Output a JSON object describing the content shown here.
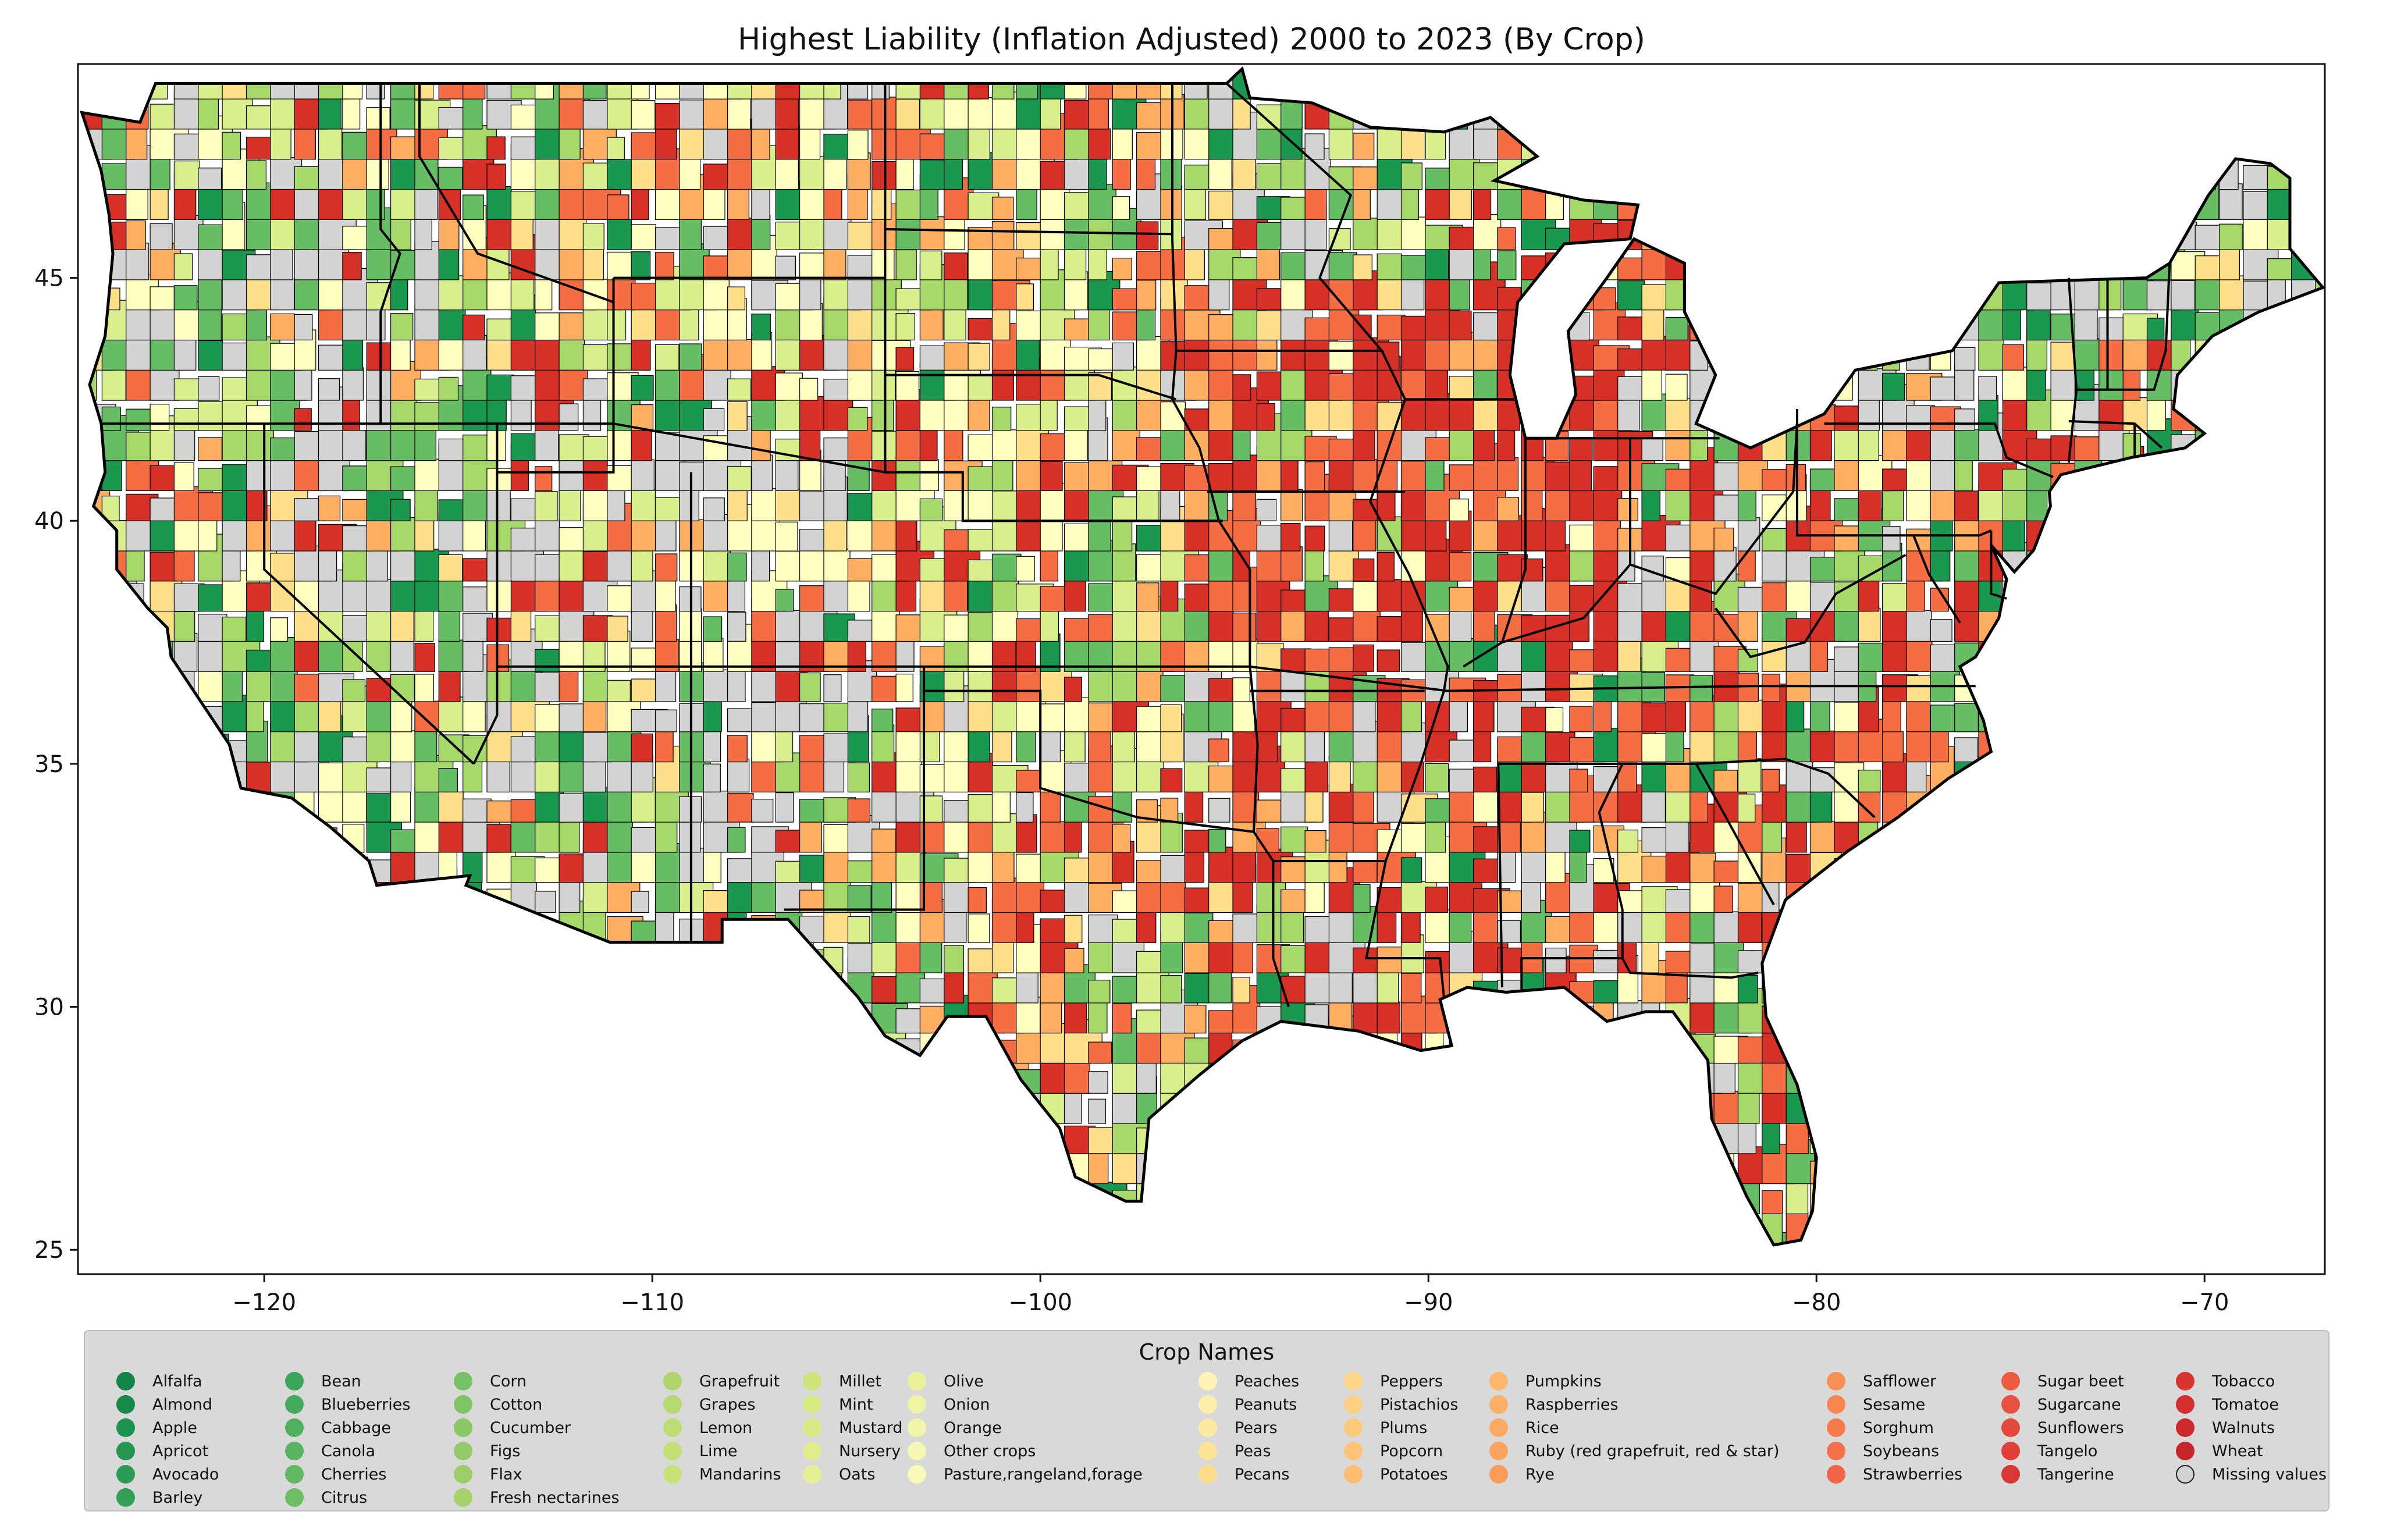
{
  "title": "Highest Liability  (Inflation Adjusted) 2000 to 2023 (By Crop)",
  "legend": {
    "title": "Crop Names",
    "columns": [
      [
        {
          "label": "Alfalfa",
          "color": "#138547"
        },
        {
          "label": "Almond",
          "color": "#178a4a"
        },
        {
          "label": "Apple",
          "color": "#1d914e"
        },
        {
          "label": "Apricot",
          "color": "#249652"
        },
        {
          "label": "Avocado",
          "color": "#2b9b55"
        },
        {
          "label": "Barley",
          "color": "#33a058"
        }
      ],
      [
        {
          "label": "Bean",
          "color": "#3aa55b"
        },
        {
          "label": "Blueberries",
          "color": "#44aa5d"
        },
        {
          "label": "Cabbage",
          "color": "#4fb05f"
        },
        {
          "label": "Canola",
          "color": "#58b461"
        },
        {
          "label": "Cherries",
          "color": "#62b963"
        },
        {
          "label": "Citrus",
          "color": "#6cbd64"
        }
      ],
      [
        {
          "label": "Corn",
          "color": "#76c065"
        },
        {
          "label": "Cotton",
          "color": "#80c465"
        },
        {
          "label": "Cucumber",
          "color": "#8ac766"
        },
        {
          "label": "Figs",
          "color": "#94ca67"
        },
        {
          "label": "Flax",
          "color": "#9ece69"
        },
        {
          "label": "Fresh nectarines",
          "color": "#a7d26b"
        }
      ],
      [
        {
          "label": "Grapefruit",
          "color": "#afd56d"
        },
        {
          "label": "Grapes",
          "color": "#b6d970"
        },
        {
          "label": "Lemon",
          "color": "#bddc72"
        },
        {
          "label": "Lime",
          "color": "#c3df75"
        },
        {
          "label": "Mandarins",
          "color": "#c9e278"
        }
      ],
      [
        {
          "label": "Millet",
          "color": "#cfe57c"
        },
        {
          "label": "Mint",
          "color": "#d5e881"
        },
        {
          "label": "Mustard",
          "color": "#daeb86"
        },
        {
          "label": "Nursery",
          "color": "#dfed8c"
        },
        {
          "label": "Oats",
          "color": "#e4f093"
        }
      ],
      [
        {
          "label": "Olive",
          "color": "#e9f29a"
        },
        {
          "label": "Onion",
          "color": "#edf4a2"
        },
        {
          "label": "Orange",
          "color": "#f1f6aa"
        },
        {
          "label": "Other crops",
          "color": "#f5f7b2"
        },
        {
          "label": "Pasture,rangeland,forage",
          "color": "#f8f8b9"
        }
      ],
      [
        {
          "label": "Peaches",
          "color": "#fef5b4"
        },
        {
          "label": "Peanuts",
          "color": "#feefaa"
        },
        {
          "label": "Pears",
          "color": "#fee9a0"
        },
        {
          "label": "Peas",
          "color": "#fee397"
        },
        {
          "label": "Pecans",
          "color": "#fedc8e"
        }
      ],
      [
        {
          "label": "Peppers",
          "color": "#fed687"
        },
        {
          "label": "Pistachios",
          "color": "#fdd082"
        },
        {
          "label": "Plums",
          "color": "#fdca7c"
        },
        {
          "label": "Popcorn",
          "color": "#fdc477"
        },
        {
          "label": "Potatoes",
          "color": "#fdbd72"
        }
      ],
      [
        {
          "label": "Pumpkins",
          "color": "#fdb76d"
        },
        {
          "label": "Raspberries",
          "color": "#fcb068"
        },
        {
          "label": "Rice",
          "color": "#fcaa63"
        },
        {
          "label": "Ruby (red grapefruit, red & star)",
          "color": "#fca35e"
        },
        {
          "label": "Rye",
          "color": "#fb9d59"
        }
      ],
      [
        {
          "label": "Safflower",
          "color": "#f99155"
        },
        {
          "label": "Sesame",
          "color": "#f78651"
        },
        {
          "label": "Sorghum",
          "color": "#f57b4d"
        },
        {
          "label": "Soybeans",
          "color": "#f37049"
        },
        {
          "label": "Strawberries",
          "color": "#f06545"
        }
      ],
      [
        {
          "label": "Sugar beet",
          "color": "#ec5b42"
        },
        {
          "label": "Sugarcane",
          "color": "#e8513e"
        },
        {
          "label": "Sunflowers",
          "color": "#e4483a"
        },
        {
          "label": "Tangelo",
          "color": "#df3f36"
        },
        {
          "label": "Tangerine",
          "color": "#d93733"
        }
      ],
      [
        {
          "label": "Tobacco",
          "color": "#d83531"
        },
        {
          "label": "Tomatoe",
          "color": "#d22f2e"
        },
        {
          "label": "Walnuts",
          "color": "#cc2a2b"
        },
        {
          "label": "Wheat",
          "color": "#c62428"
        },
        {
          "label": "Missing values",
          "color": "#d3d3d3"
        }
      ]
    ]
  },
  "axes": {
    "x_ticks": [
      -120,
      -110,
      -100,
      -90,
      -80,
      -70
    ],
    "y_ticks": [
      25,
      30,
      35,
      40,
      45
    ],
    "x_tick_labels": [
      "−120",
      "−110",
      "−100",
      "−90",
      "−80",
      "−70"
    ],
    "y_tick_labels": [
      "25",
      "30",
      "35",
      "40",
      "45"
    ],
    "xlim": [
      -124.8,
      -66.9
    ],
    "ylim": [
      24.5,
      49.4
    ]
  },
  "palette": [
    "#1a9850",
    "#66bd63",
    "#a6d96a",
    "#d9ef8b",
    "#ffffbf",
    "#fee08b",
    "#fdae61",
    "#f46d43",
    "#d73027",
    "#d3d3d3"
  ]
}
